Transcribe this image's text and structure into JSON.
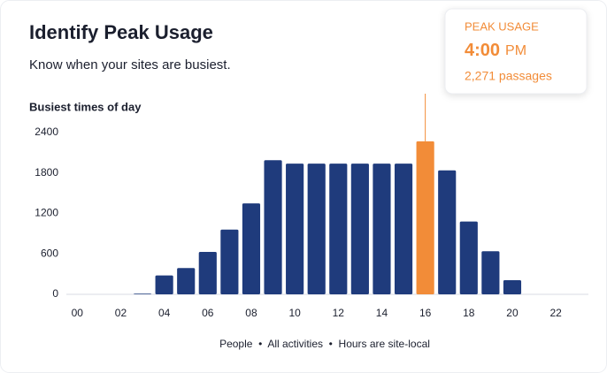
{
  "chart_data": {
    "type": "bar",
    "title": "Identify Peak Usage",
    "subtitle": "Know when your sites are busiest.",
    "y_axis_title": "Busiest times of day",
    "categories": [
      "00",
      null,
      "02",
      null,
      "04",
      null,
      "06",
      null,
      "08",
      null,
      "10",
      null,
      "12",
      null,
      "14",
      null,
      "16",
      null,
      "18",
      null,
      "20",
      null,
      "22",
      null
    ],
    "values": [
      0,
      0,
      0,
      10,
      280,
      390,
      630,
      960,
      1350,
      1990,
      1940,
      1940,
      1940,
      1940,
      1940,
      1940,
      2271,
      1840,
      1080,
      640,
      210,
      0,
      0,
      0
    ],
    "color": "#1f3b7c",
    "highlight": {
      "index": 16,
      "color": "#f28c38"
    },
    "ylim": [
      0,
      2400
    ],
    "yticks": [
      0,
      600,
      1200,
      1800,
      2400
    ],
    "grid": false,
    "tooltip": {
      "label": "PEAK USAGE",
      "time": "4:00",
      "meridiem": "PM",
      "detail": "2,271 passages"
    },
    "footnote": "People  •  All activities  •  Hours are site-local"
  }
}
